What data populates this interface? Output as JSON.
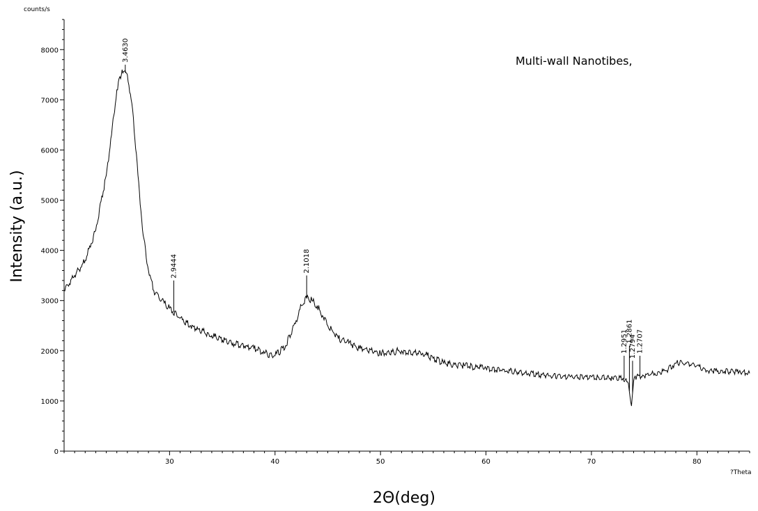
{
  "chart_data": {
    "type": "line",
    "ylabel": "Intensity (a.u.)",
    "y_unit": "counts/s",
    "xlabel": "2Θ(deg)",
    "x_unit": "?Theta",
    "annotation": "Multi-wall Nanotibes,",
    "xlim": [
      20,
      85
    ],
    "ylim": [
      0,
      8600
    ],
    "x_ticks": [
      30,
      40,
      50,
      60,
      70,
      80
    ],
    "y_ticks": [
      0,
      1000,
      2000,
      3000,
      4000,
      5000,
      6000,
      7000,
      8000
    ],
    "grid": false,
    "series": [
      {
        "x": [
          20.0,
          21.0,
          22.0,
          23.0,
          24.0,
          24.5,
          25.0,
          25.5,
          26.0,
          26.5,
          27.0,
          27.5,
          28.0,
          28.5,
          29.0,
          29.5,
          30.0,
          31.0,
          32.0,
          34.0,
          36.0,
          38.0,
          39.0,
          40.0,
          41.0,
          42.0,
          42.5,
          43.0,
          43.5,
          44.0,
          44.5,
          45.0,
          46.0,
          47.0,
          48.0,
          50.0,
          52.0,
          54.0,
          55.0,
          56.0,
          58.0,
          60.0,
          62.0,
          64.0,
          66.0,
          68.0,
          70.0,
          72.0,
          73.0,
          73.5,
          73.8,
          74.0,
          74.3,
          75.0,
          76.0,
          77.0,
          78.0,
          79.0,
          80.0,
          81.0,
          82.0,
          84.0,
          85.0
        ],
        "y": [
          3200,
          3500,
          3800,
          4400,
          5500,
          6300,
          7200,
          7600,
          7500,
          6800,
          5500,
          4300,
          3600,
          3200,
          3050,
          2950,
          2850,
          2650,
          2500,
          2300,
          2150,
          2050,
          1950,
          1900,
          2100,
          2600,
          2900,
          3050,
          3000,
          2900,
          2700,
          2500,
          2250,
          2150,
          2050,
          1950,
          2000,
          1950,
          1850,
          1750,
          1700,
          1650,
          1600,
          1550,
          1500,
          1480,
          1480,
          1450,
          1450,
          1350,
          900,
          1400,
          1500,
          1500,
          1550,
          1600,
          1750,
          1750,
          1700,
          1600,
          1600,
          1580,
          1550
        ]
      }
    ],
    "peaks": [
      {
        "x": 25.8,
        "label": "3.4630",
        "top": 7700
      },
      {
        "x": 30.4,
        "label": "2.9444",
        "top": 3400
      },
      {
        "x": 43.0,
        "label": "2.1018",
        "top": 3500
      },
      {
        "x": 73.1,
        "label": "1.2951",
        "top": 1900
      },
      {
        "x": 73.6,
        "label": "1.2861",
        "top": 2100
      },
      {
        "x": 73.9,
        "label": "1.2794",
        "top": 1800
      },
      {
        "x": 74.6,
        "label": "1.2707",
        "top": 1900
      }
    ]
  }
}
